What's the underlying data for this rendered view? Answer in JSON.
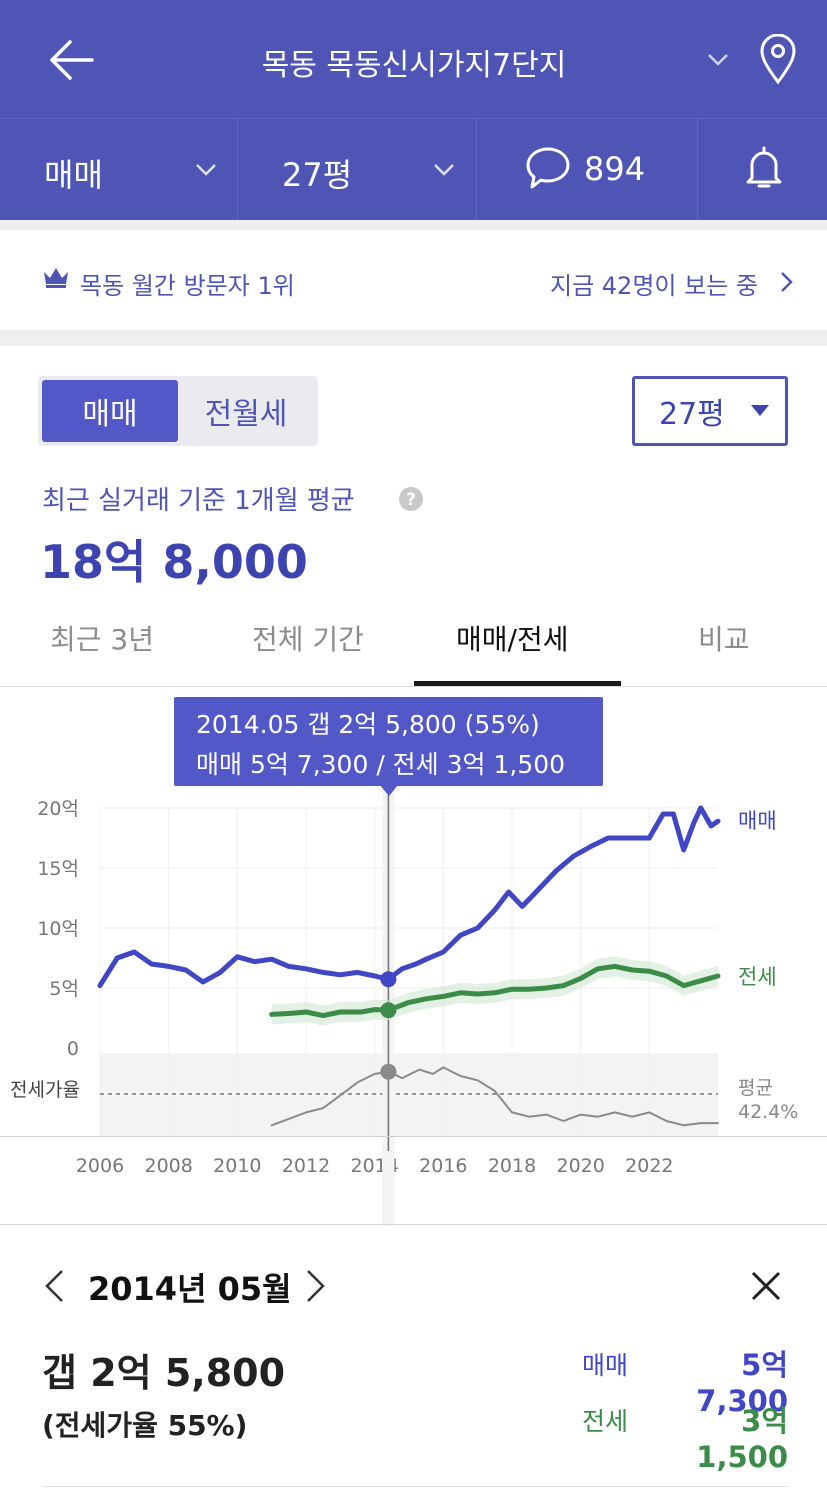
{
  "header": {
    "complex_name": "목동 목동신시가지7단지"
  },
  "subbar": {
    "trade_type": "매매",
    "pyeong": "27평",
    "comment_count": "894"
  },
  "banner": {
    "rank_text": "목동 월간 방문자 1위",
    "viewers_text": "지금 42명이 보는 중"
  },
  "segment": {
    "active": "매매",
    "inactive": "전월세"
  },
  "pyeong_select": "27평",
  "summary": {
    "label": "최근 실거래 기준 1개월 평균",
    "price": "18억 8,000"
  },
  "tabs": [
    {
      "label": "최근 3년"
    },
    {
      "label": "전체 기간"
    },
    {
      "label": "매매/전세"
    },
    {
      "label": "비교"
    }
  ],
  "tooltip": {
    "line1": "2014.05  갭 2억 5,800 (55%)",
    "line2": "매매 5억 7,300 / 전세 3억 1,500"
  },
  "chart_data": {
    "type": "line",
    "x_ticks": [
      "2006",
      "2008",
      "2010",
      "2012",
      "2014",
      "2016",
      "2018",
      "2020",
      "2022"
    ],
    "y_ticks": [
      "20억",
      "15억",
      "10억",
      "5억",
      "0"
    ],
    "ylim": [
      0,
      20
    ],
    "y_unit": "억",
    "ratio_label": "전세가율",
    "avg_label_1": "평균",
    "avg_label_2": "42.4%",
    "selected_x": 2014.4,
    "series": [
      {
        "name": "매매",
        "color": "#4046c4",
        "points": [
          [
            2006.0,
            5.2
          ],
          [
            2006.5,
            7.5
          ],
          [
            2007.0,
            8.0
          ],
          [
            2007.5,
            7.0
          ],
          [
            2008.0,
            6.8
          ],
          [
            2008.5,
            6.5
          ],
          [
            2009.0,
            5.5
          ],
          [
            2009.5,
            6.3
          ],
          [
            2010.0,
            7.6
          ],
          [
            2010.5,
            7.2
          ],
          [
            2011.0,
            7.4
          ],
          [
            2011.5,
            6.8
          ],
          [
            2012.0,
            6.6
          ],
          [
            2012.5,
            6.3
          ],
          [
            2013.0,
            6.1
          ],
          [
            2013.5,
            6.3
          ],
          [
            2014.0,
            6.0
          ],
          [
            2014.4,
            5.73
          ],
          [
            2014.8,
            6.6
          ],
          [
            2015.2,
            7.0
          ],
          [
            2015.5,
            7.4
          ],
          [
            2016.0,
            8.0
          ],
          [
            2016.5,
            9.4
          ],
          [
            2017.0,
            10.0
          ],
          [
            2017.5,
            11.5
          ],
          [
            2017.9,
            13.0
          ],
          [
            2018.3,
            11.8
          ],
          [
            2018.8,
            13.3
          ],
          [
            2019.3,
            14.8
          ],
          [
            2019.8,
            16.0
          ],
          [
            2020.3,
            16.8
          ],
          [
            2020.8,
            17.5
          ],
          [
            2021.5,
            17.5
          ],
          [
            2022.0,
            17.5
          ],
          [
            2022.4,
            19.5
          ],
          [
            2022.7,
            19.5
          ],
          [
            2023.0,
            16.5
          ],
          [
            2023.3,
            18.8
          ],
          [
            2023.5,
            20.0
          ],
          [
            2023.8,
            18.5
          ],
          [
            2024.0,
            18.9
          ]
        ]
      },
      {
        "name": "전세",
        "color": "#3a8c48",
        "points": [
          [
            2011.0,
            2.8
          ],
          [
            2011.6,
            2.9
          ],
          [
            2012.0,
            3.0
          ],
          [
            2012.5,
            2.7
          ],
          [
            2013.0,
            3.0
          ],
          [
            2013.6,
            3.0
          ],
          [
            2014.0,
            3.2
          ],
          [
            2014.4,
            3.15
          ],
          [
            2015.0,
            3.8
          ],
          [
            2015.5,
            4.1
          ],
          [
            2016.0,
            4.3
          ],
          [
            2016.5,
            4.6
          ],
          [
            2017.0,
            4.5
          ],
          [
            2017.5,
            4.6
          ],
          [
            2018.0,
            4.9
          ],
          [
            2018.5,
            4.9
          ],
          [
            2019.0,
            5.0
          ],
          [
            2019.5,
            5.2
          ],
          [
            2020.0,
            5.8
          ],
          [
            2020.5,
            6.6
          ],
          [
            2021.0,
            6.8
          ],
          [
            2021.5,
            6.5
          ],
          [
            2022.0,
            6.4
          ],
          [
            2022.5,
            6.0
          ],
          [
            2023.0,
            5.2
          ],
          [
            2023.5,
            5.6
          ],
          [
            2024.0,
            6.0
          ]
        ]
      },
      {
        "name": "전세가율",
        "color": "#8a8a8a",
        "points": [
          [
            2011.0,
            30
          ],
          [
            2011.5,
            33
          ],
          [
            2012.0,
            36
          ],
          [
            2012.5,
            38
          ],
          [
            2013.0,
            44
          ],
          [
            2013.5,
            50
          ],
          [
            2014.0,
            54
          ],
          [
            2014.4,
            55
          ],
          [
            2014.8,
            52
          ],
          [
            2015.3,
            56
          ],
          [
            2015.7,
            54
          ],
          [
            2016.0,
            57
          ],
          [
            2016.5,
            53
          ],
          [
            2017.0,
            51
          ],
          [
            2017.5,
            46
          ],
          [
            2018.0,
            36
          ],
          [
            2018.5,
            34
          ],
          [
            2019.0,
            35
          ],
          [
            2019.5,
            32
          ],
          [
            2020.0,
            35
          ],
          [
            2020.5,
            34
          ],
          [
            2021.0,
            36
          ],
          [
            2021.5,
            34
          ],
          [
            2022.0,
            36
          ],
          [
            2022.5,
            32
          ],
          [
            2023.0,
            30
          ],
          [
            2023.5,
            31
          ],
          [
            2024.0,
            31
          ]
        ]
      }
    ]
  },
  "detail": {
    "date": "2014년 05월",
    "gap": "갭 2억 5,800",
    "ratio": "(전세가율 55%)",
    "sale_label": "매매",
    "sale_value": "5억 7,300",
    "jeonse_label": "전세",
    "jeonse_value": "3억 1,500"
  },
  "colors": {
    "brand": "#4e55b5",
    "sale": "#4046c4",
    "jeonse": "#3a8c48"
  }
}
